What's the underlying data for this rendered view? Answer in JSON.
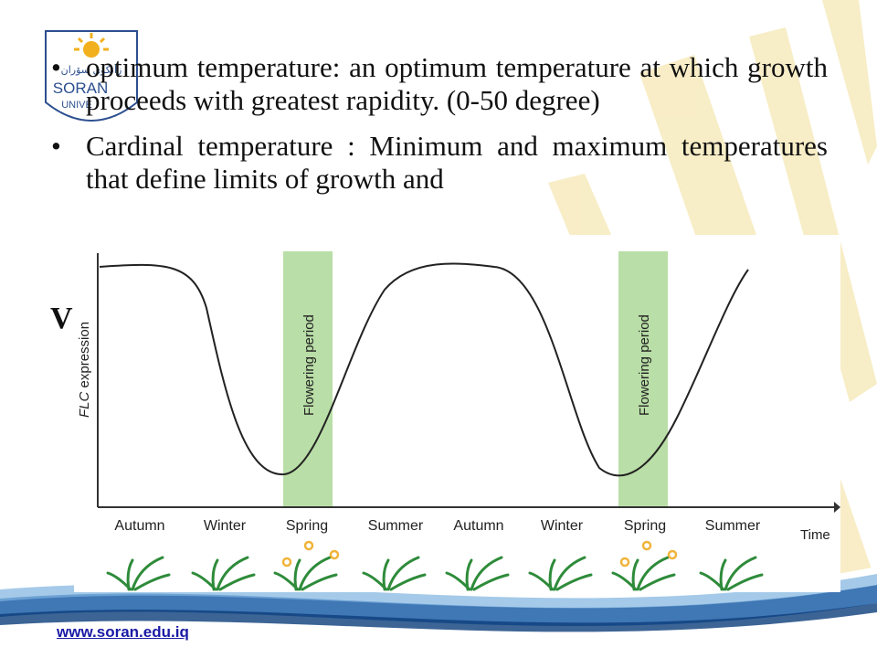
{
  "bullets": [
    {
      "marker": "•",
      "text": "optimum temperature: an optimum temperature at which growth proceeds with greatest rapidity. (0-50 degree)"
    },
    {
      "marker": "•",
      "text": "Cardinal temperature : Minimum and maximum temperatures that define limits of growth and"
    }
  ],
  "stray_letter": "V",
  "logo": {
    "arabic_text": "زانکۆی سۆران",
    "name": "SORAN",
    "sub": "UNIVE"
  },
  "figure": {
    "ylabel_italic": "FLC",
    "ylabel_rest": " expression",
    "xlabel": "Time",
    "band_label": "Flowering period",
    "seasons": [
      "Autumn",
      "Winter",
      "Spring",
      "Summer",
      "Autumn",
      "Winter",
      "Spring",
      "Summer"
    ],
    "colors": {
      "band": "#b9dea7",
      "curve": "#222222",
      "plant": "#2e8b3a",
      "flower": "#f0b43a"
    }
  },
  "footer": {
    "url": "www.soran.edu.iq"
  },
  "colors": {
    "ray": "#f6e9b8",
    "blue_wave": "#1f5fa8"
  }
}
